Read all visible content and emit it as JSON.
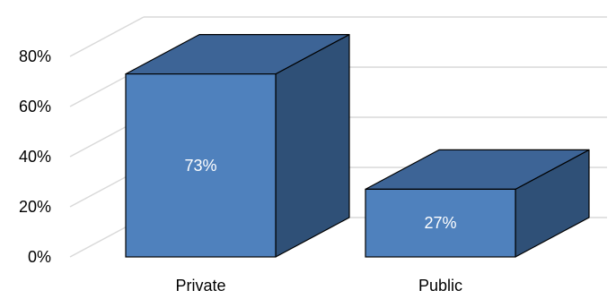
{
  "chart_data": {
    "type": "bar",
    "three_d": true,
    "categories": [
      "Private",
      "Public"
    ],
    "values": [
      0.73,
      0.27
    ],
    "data_labels": [
      "73%",
      "27%"
    ],
    "ylim": [
      0,
      0.8
    ],
    "yticks": [
      0,
      0.2,
      0.4,
      0.6,
      0.8
    ],
    "ytick_labels": [
      "0%",
      "20%",
      "40%",
      "60%",
      "80%"
    ],
    "grid": true,
    "legend": "none",
    "colors": {
      "front": "#4F81BD",
      "top": "#3D6496",
      "side": "#2F5077",
      "edge": "#000000",
      "grid": "#D9D9D9",
      "label_inside": "#ffffff"
    }
  }
}
